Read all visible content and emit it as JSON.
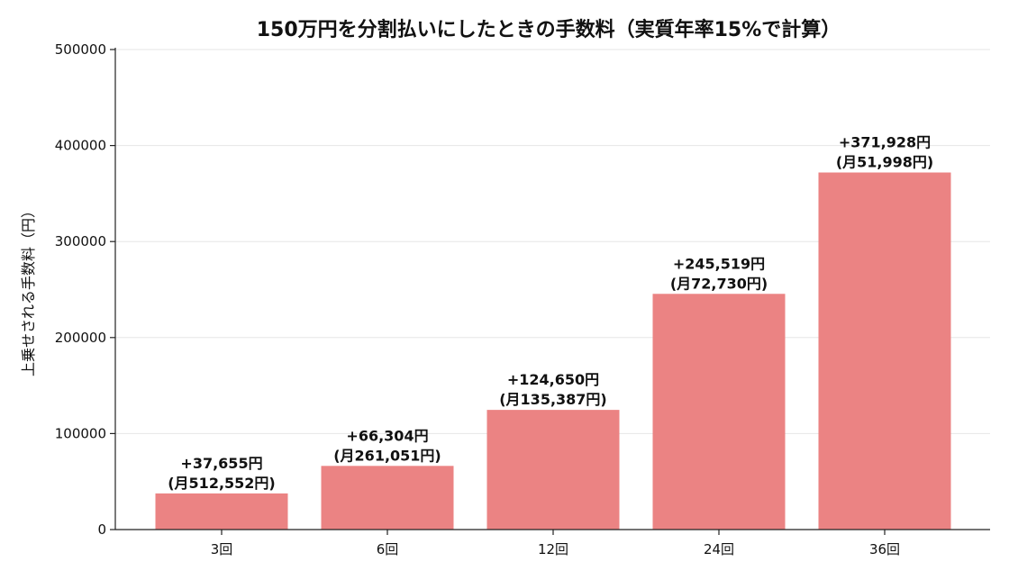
{
  "chart_data": {
    "type": "bar",
    "title": "150万円を分割払いにしたときの手数料（実質年率15%で計算）",
    "xlabel": "",
    "ylabel": "上乗せされる手数料（円）",
    "categories": [
      "3回",
      "6回",
      "12回",
      "24回",
      "36回"
    ],
    "values": [
      37655,
      66304,
      124650,
      245519,
      371928
    ],
    "data_labels": [
      [
        "+37,655円",
        "(月512,552円)"
      ],
      [
        "+66,304円",
        "(月261,051円)"
      ],
      [
        "+124,650円",
        "(月135,387円)"
      ],
      [
        "+245,519円",
        "(月72,730円)"
      ],
      [
        "+371,928円",
        "(月51,998円)"
      ]
    ],
    "ylim": [
      0,
      500000
    ],
    "yticks": [
      0,
      100000,
      200000,
      300000,
      400000,
      500000
    ],
    "ytick_labels": [
      "0",
      "100000",
      "200000",
      "300000",
      "400000",
      "500000"
    ],
    "grid": "horizontal",
    "bar_color": "#eb8383"
  }
}
